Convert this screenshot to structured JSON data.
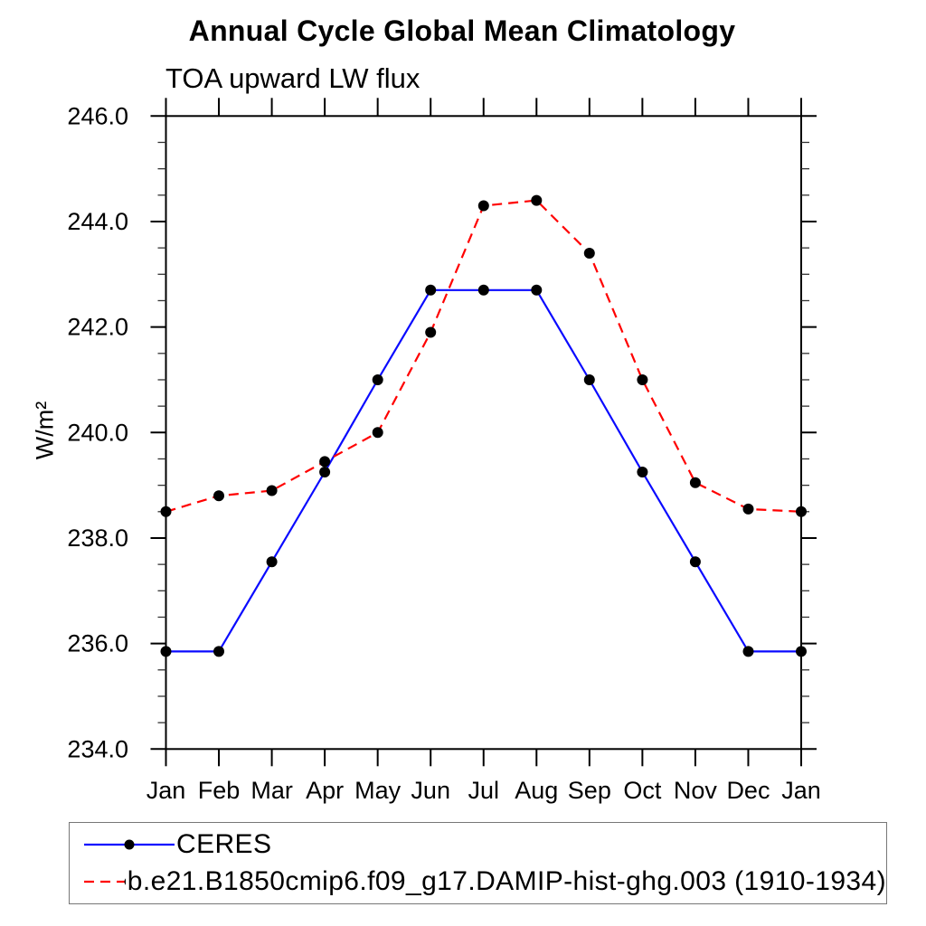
{
  "page": {
    "background": "#ffffff"
  },
  "chart_data": {
    "type": "line",
    "title": "Annual Cycle Global Mean Climatology",
    "subtitle": "TOA upward LW flux",
    "ylabel": "W/m²",
    "xlabel": "",
    "categories": [
      "Jan",
      "Feb",
      "Mar",
      "Apr",
      "May",
      "Jun",
      "Jul",
      "Aug",
      "Sep",
      "Oct",
      "Nov",
      "Dec",
      "Jan"
    ],
    "ylim": [
      234.0,
      246.0
    ],
    "ytick_interval_major": 2.0,
    "ytick_interval_minor": 0.5,
    "ytick_labels": [
      "234.0",
      "236.0",
      "238.0",
      "240.0",
      "242.0",
      "244.0",
      "246.0"
    ],
    "grid": false,
    "axis_color": "#000000",
    "legend_position": "bottom-left-box",
    "series": [
      {
        "name": "CERES",
        "line_color": "#0a0aff",
        "line_style": "solid",
        "marker": "filled-circle",
        "marker_color": "#000000",
        "values": [
          235.85,
          235.85,
          237.55,
          239.25,
          241.0,
          242.7,
          242.7,
          242.7,
          241.0,
          239.25,
          237.55,
          235.85,
          235.85
        ]
      },
      {
        "name": "b.e21.B1850cmip6.f09_g17.DAMIP-hist-ghg.003 (1910-1934)",
        "line_color": "#ff0000",
        "line_style": "dashed",
        "marker": "filled-circle",
        "marker_color": "#000000",
        "values": [
          238.5,
          238.8,
          238.9,
          239.45,
          240.0,
          241.9,
          244.3,
          244.4,
          243.4,
          241.0,
          239.05,
          238.55,
          238.5
        ]
      }
    ]
  }
}
